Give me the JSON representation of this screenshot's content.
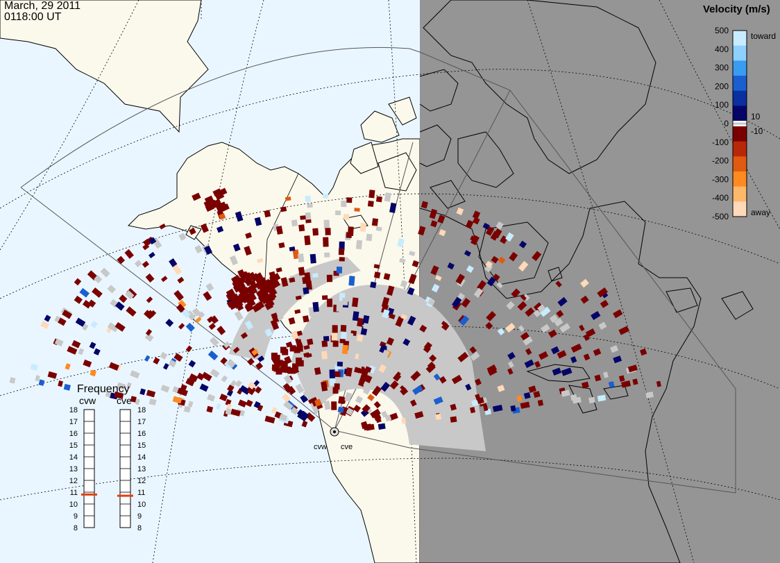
{
  "header": {
    "date": "March, 29 2011",
    "time": "0118:00 UT"
  },
  "legend": {
    "title": "Velocity (m/s)",
    "ticks": [
      "500",
      "400",
      "300",
      "200",
      "100",
      "0",
      "-100",
      "-200",
      "-300",
      "-400",
      "-500"
    ],
    "toward": "toward",
    "away": "away",
    "near_pos": "10",
    "near_neg": "-10",
    "colors": [
      "#ffd9b8",
      "#ffb86a",
      "#ff8a20",
      "#e05a10",
      "#b82808",
      "#7a0000",
      "#050568",
      "#0a2fa0",
      "#1a5fd0",
      "#3a9cf0",
      "#8ed0ff",
      "#c8ecff"
    ],
    "ground_scatter_color": "#c8c8c8"
  },
  "frequency": {
    "title": "Frequency",
    "radars": [
      "cvw",
      "cve"
    ],
    "ticks": [
      "18",
      "17",
      "16",
      "15",
      "14",
      "13",
      "12",
      "11",
      "10",
      "9",
      "8"
    ],
    "cvw_mhz": 10.8,
    "cve_mhz": 10.7,
    "marker_color": "#e04010"
  },
  "stations": {
    "cvw": "cvw",
    "cve": "cve"
  },
  "map": {
    "ocean_color": "#eaf6ff",
    "land_color": "#fbf9ec",
    "night_color": "#959595"
  }
}
